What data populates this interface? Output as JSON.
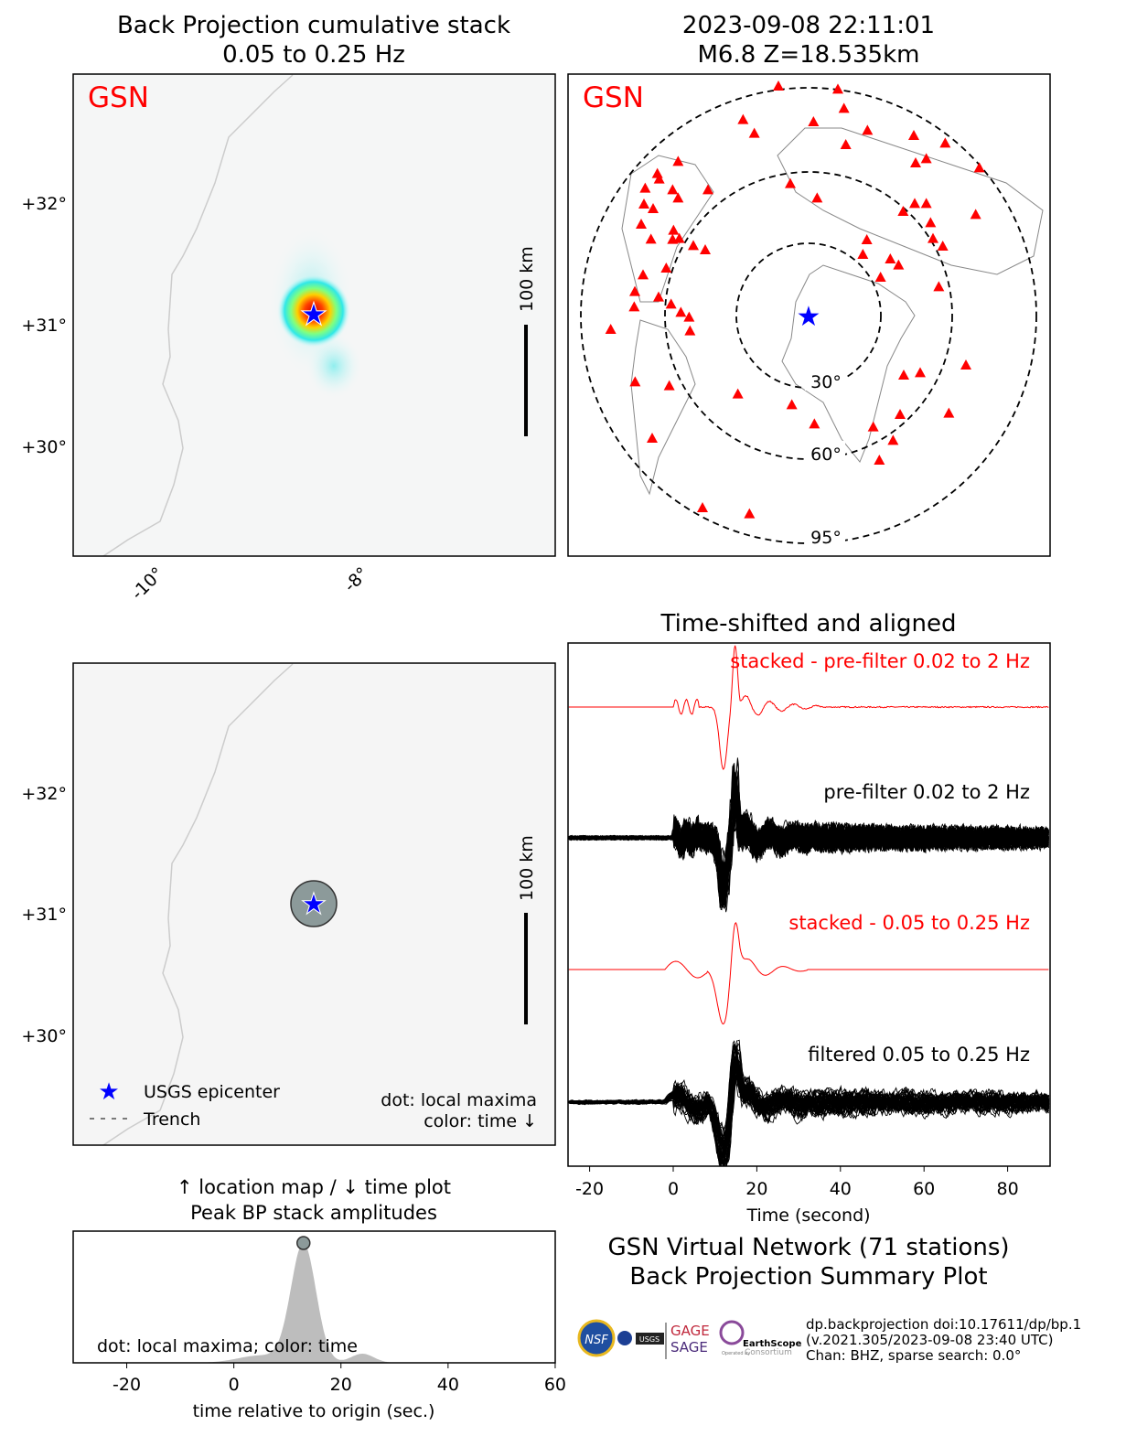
{
  "colors": {
    "station": "#ff0000",
    "epicenter": "#0000ff",
    "red_text": "#ff0000",
    "coast": "#cccccc",
    "peak_fill": "#bdbdbd",
    "dot": "#8c9a9a"
  },
  "left_title": [
    "Back Projection cumulative stack",
    "0.05 to 0.25 Hz"
  ],
  "right_title": [
    "2023-09-08 22:11:01",
    "M6.8 Z=18.535km"
  ],
  "network_label": "GSN",
  "scale_bar_label": "100 km",
  "map_ticks": {
    "lat": [
      "+32°",
      "+31°",
      "+30°"
    ],
    "lon": [
      "-10°",
      "-8°"
    ]
  },
  "distance_rings": [
    "30°",
    "60°",
    "95°"
  ],
  "legend": {
    "epicenter": "USGS epicenter",
    "trench": "Trench",
    "note1": "dot: local maxima",
    "note2": "color: time ↓"
  },
  "mid_title": [
    "↑ location map / ↓ time plot",
    "Peak BP stack amplitudes"
  ],
  "waveform_title": "Time-shifted and aligned",
  "summary_title": [
    "GSN Virtual Network (71 stations)",
    "Back Projection Summary Plot"
  ],
  "info": [
    "dp.backprojection doi:10.17611/dp/bp.1",
    "(v.2021.305/2023-09-08 23:40 UTC)",
    "Chan: BHZ, sparse search: 0.0°"
  ],
  "logos": [
    "NSF",
    "NASA",
    "USGS",
    "GAGE",
    "SAGE",
    "EarthScope",
    "Operated by",
    "Consortium"
  ],
  "chart_data": [
    {
      "type": "heatmap",
      "title": "Back Projection cumulative stack 0.05 to 0.25 Hz",
      "ylabel_ticks": [
        "+32°",
        "+31°",
        "+30°"
      ],
      "xlabel_ticks": [
        "-10°",
        "-8°"
      ],
      "peak_location": "near epicenter, ~31.1°N -8.4°E",
      "colormap": "jet"
    },
    {
      "type": "scatter",
      "title": "2023-09-08 22:11:01 M6.8 Z=18.535km",
      "series": [
        {
          "name": "GSN stations",
          "count": 71
        }
      ],
      "rings_deg": [
        30,
        60,
        95
      ]
    },
    {
      "type": "line",
      "title": "Time-shifted and aligned",
      "xlabel": "Time (second)",
      "xlim": [
        -25,
        90
      ],
      "xticks": [
        -20,
        0,
        20,
        40,
        60,
        80
      ],
      "series": [
        {
          "name": "stacked - pre-filter 0.02 to 2 Hz",
          "color": "#ff0000"
        },
        {
          "name": "pre-filter 0.02 to 2 Hz",
          "color": "#000000"
        },
        {
          "name": "stacked - 0.05 to 0.25 Hz",
          "color": "#ff0000"
        },
        {
          "name": "filtered 0.05 to 0.25 Hz",
          "color": "#000000"
        }
      ]
    },
    {
      "type": "area",
      "title": "Peak BP stack amplitudes",
      "xlabel": "time relative to origin (sec.)",
      "xlim": [
        -30,
        60
      ],
      "xticks": [
        -20,
        0,
        20,
        40,
        60
      ],
      "annotation": "dot: local maxima; color: time",
      "local_maximum_time": 13
    }
  ]
}
